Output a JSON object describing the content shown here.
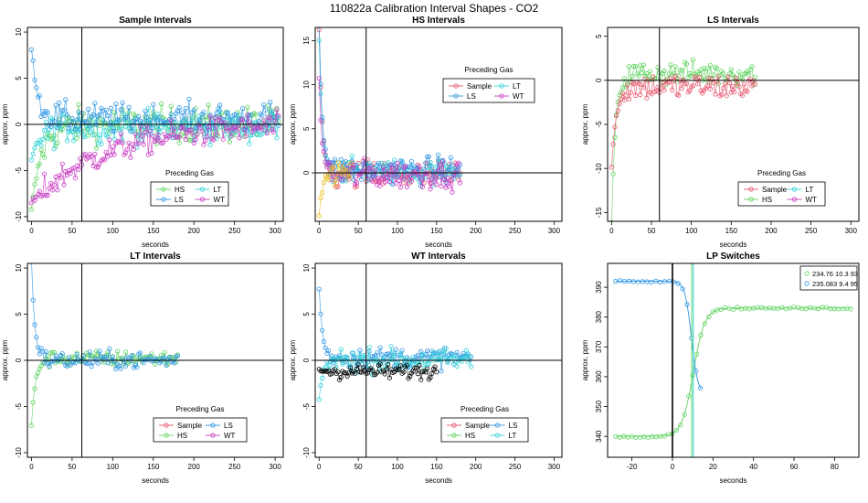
{
  "page_title": "110822a   Calibration Interval Shapes - CO2",
  "legend_title": "Preceding Gas",
  "colors": {
    "Sample": "#e8556b",
    "HS": "#5fd35f",
    "LS": "#2f96e3",
    "LT": "#32d2d8",
    "WT": "#c93cc3",
    "Black": "#000000",
    "Yellow": "#e8c020"
  },
  "chart_data": [
    {
      "type": "scatter",
      "title": "Sample Intervals",
      "xlabel": "seconds",
      "ylabel": "approx. ppm",
      "xlim": [
        -5,
        310
      ],
      "ylim": [
        -10.5,
        10.5
      ],
      "xticks": [
        0,
        50,
        100,
        150,
        200,
        250,
        300
      ],
      "yticks": [
        -10,
        -5,
        0,
        5,
        10
      ],
      "vline": 62,
      "hline": 0,
      "legend": {
        "entries": [
          "HS",
          "LT",
          "LS",
          "WT"
        ],
        "placement": "lower-left"
      },
      "series": [
        {
          "name": "HS",
          "color": "HS",
          "x_end": 305,
          "start": -9.5,
          "target": 0.0,
          "tau": 12,
          "noise": 1.4
        },
        {
          "name": "LT",
          "color": "LT",
          "x_end": 305,
          "start": -4.0,
          "target": -0.3,
          "tau": 10,
          "noise": 1.2
        },
        {
          "name": "LS",
          "color": "LS",
          "x_end": 305,
          "start": 8.2,
          "target": 0.6,
          "tau": 8,
          "noise": 1.2
        },
        {
          "name": "WT",
          "color": "WT",
          "x_end": 305,
          "start": -8.5,
          "target": 0.0,
          "tau": 90,
          "noise": 1.1
        }
      ]
    },
    {
      "type": "scatter",
      "title": "HS Intervals",
      "xlabel": "seconds",
      "ylabel": "approx. ppm",
      "xlim": [
        -5,
        310
      ],
      "ylim": [
        -5.5,
        16.5
      ],
      "xticks": [
        0,
        50,
        100,
        150,
        200,
        250,
        300
      ],
      "yticks": [
        0,
        5,
        10,
        15
      ],
      "vline": 60,
      "hline": 0,
      "legend": {
        "entries": [
          "Sample",
          "LT",
          "LS",
          "WT"
        ],
        "placement": "upper-center"
      },
      "series": [
        {
          "name": "Sample",
          "color": "Sample",
          "x_end": 180,
          "start": 16,
          "target": -0.3,
          "tau": 4,
          "noise": 1.3
        },
        {
          "name": "LT",
          "color": "LT",
          "x_end": 180,
          "start": 15,
          "target": 0.2,
          "tau": 4,
          "noise": 1.0
        },
        {
          "name": "LS",
          "color": "LS",
          "x_end": 180,
          "start": 17,
          "target": 0.3,
          "tau": 4,
          "noise": 1.1
        },
        {
          "name": "WT",
          "color": "WT",
          "x_end": 180,
          "start": 10.5,
          "target": -0.2,
          "tau": 4,
          "noise": 1.2
        },
        {
          "name": "",
          "color": "Yellow",
          "x_end": 40,
          "start": -5,
          "target": 0.0,
          "tau": 4,
          "noise": 0.8
        }
      ]
    },
    {
      "type": "scatter",
      "title": "LS Intervals",
      "xlabel": "seconds",
      "ylabel": "approx. ppm",
      "xlim": [
        -5,
        310
      ],
      "ylim": [
        -16,
        6
      ],
      "xticks": [
        0,
        50,
        100,
        150,
        200,
        250,
        300
      ],
      "yticks": [
        -15,
        -10,
        -5,
        0,
        5
      ],
      "vline": 60,
      "hline": 0,
      "legend": {
        "entries": [
          "Sample",
          "LT",
          "HS",
          "WT"
        ],
        "placement": "lower-center"
      },
      "series": [
        {
          "name": "HS",
          "color": "HS",
          "x_end": 180,
          "start": -16,
          "target": 0.8,
          "tau": 5,
          "noise": 1.0
        },
        {
          "name": "Sample",
          "color": "Sample",
          "x_end": 180,
          "start": -10,
          "target": -0.7,
          "tau": 6,
          "noise": 1.1
        }
      ]
    },
    {
      "type": "scatter",
      "title": "LT Intervals",
      "xlabel": "seconds",
      "ylabel": "approx. ppm",
      "xlim": [
        -5,
        310
      ],
      "ylim": [
        -10.5,
        10.5
      ],
      "xticks": [
        0,
        50,
        100,
        150,
        200,
        250,
        300
      ],
      "yticks": [
        -10,
        -5,
        0,
        5,
        10
      ],
      "vline": 62,
      "hline": 0,
      "legend": {
        "entries": [
          "Sample",
          "LS",
          "HS",
          "WT"
        ],
        "placement": "lower-center"
      },
      "series": [
        {
          "name": "HS",
          "color": "HS",
          "x_end": 180,
          "start": -7.0,
          "target": 0.2,
          "tau": 5,
          "noise": 0.6
        },
        {
          "name": "LS",
          "color": "LS",
          "x_end": 180,
          "start": 11,
          "target": 0.0,
          "tau": 4,
          "noise": 0.7
        }
      ]
    },
    {
      "type": "scatter",
      "title": "WT Intervals",
      "xlabel": "seconds",
      "ylabel": "approx. ppm",
      "xlim": [
        -5,
        310
      ],
      "ylim": [
        -10.5,
        10.5
      ],
      "xticks": [
        0,
        50,
        100,
        150,
        200,
        250,
        300
      ],
      "yticks": [
        -10,
        -5,
        0,
        5,
        10
      ],
      "vline": 60,
      "hline": 0,
      "legend": {
        "entries": [
          "Sample",
          "LS",
          "HS",
          "LT"
        ],
        "placement": "lower-center"
      },
      "series": [
        {
          "name": "LS",
          "color": "LS",
          "x_end": 195,
          "start": 8.0,
          "target": 0.3,
          "tau": 4,
          "noise": 0.8
        },
        {
          "name": "LT",
          "color": "LT",
          "x_end": 195,
          "start": -4.8,
          "target": 0.0,
          "tau": 4,
          "noise": 0.9
        },
        {
          "name": "",
          "color": "Black",
          "x_end": 150,
          "start": -1.0,
          "target": -1.2,
          "tau": 4,
          "noise": 0.6
        }
      ]
    },
    {
      "type": "line",
      "title": "LP Switches",
      "xlabel": "seconds",
      "ylabel": "approx. ppm",
      "xlim": [
        -32,
        92
      ],
      "ylim": [
        333,
        398
      ],
      "xticks": [
        -20,
        0,
        20,
        40,
        60,
        80
      ],
      "yticks": [
        340,
        350,
        360,
        370,
        380,
        390
      ],
      "vline": 0,
      "vlines_colored": [
        {
          "x": 9.5,
          "color": "HS"
        },
        {
          "x": 10.3,
          "color": "LT"
        }
      ],
      "legend_items": [
        {
          "label": "234.76 10.3 93",
          "color": "HS"
        },
        {
          "label": "235.083 9.4 95",
          "color": "LS"
        }
      ],
      "series": [
        {
          "name": "234.76",
          "color": "HS",
          "x": [
            -28,
            5
          ],
          "start": 340,
          "end": 383,
          "mid": 10.3,
          "width": 2.8,
          "x_end": 88
        },
        {
          "name": "235.083",
          "color": "LS",
          "x": [
            -28,
            14
          ],
          "start": 392,
          "end": 354,
          "mid": 9.4,
          "width": 1.6,
          "x_end": 14
        }
      ]
    }
  ]
}
